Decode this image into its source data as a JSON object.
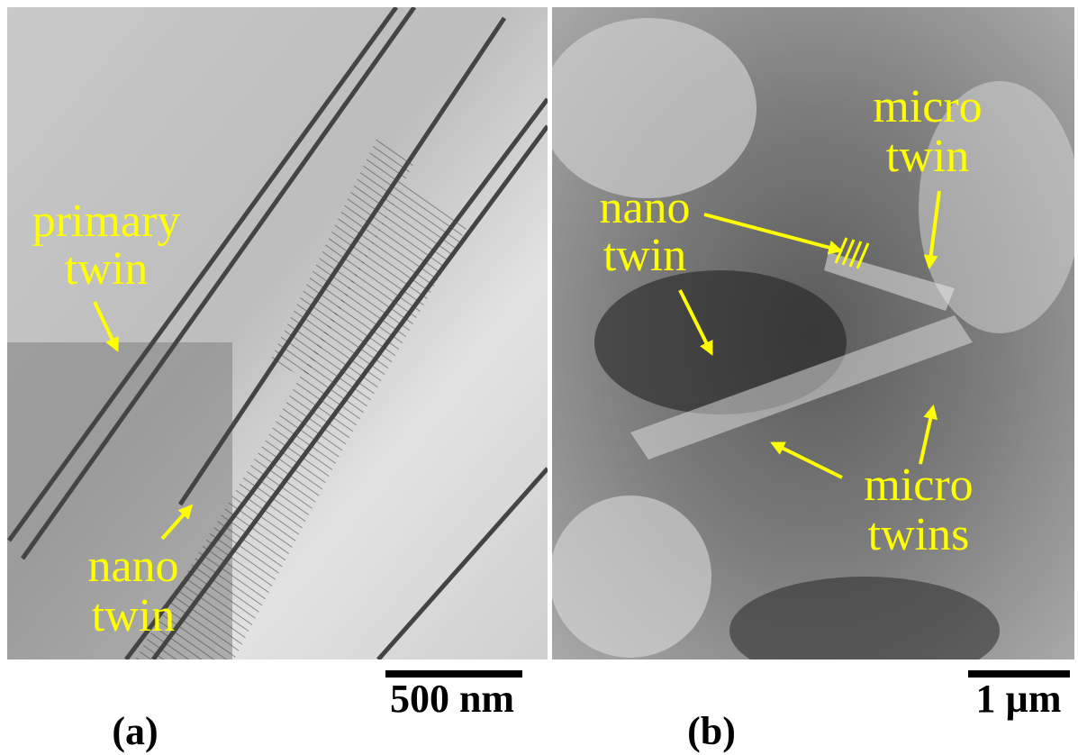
{
  "panels": [
    {
      "label": "(a)",
      "scale_bar": "500 nm",
      "annotations": [
        {
          "lines": [
            "primary",
            "twin"
          ]
        },
        {
          "lines": [
            "nano",
            "twin"
          ]
        }
      ]
    },
    {
      "label": "(b)",
      "scale_bar": "1 µm",
      "annotations": [
        {
          "lines": [
            "micro",
            "twin"
          ]
        },
        {
          "lines": [
            "nano",
            "twin"
          ]
        },
        {
          "lines": [
            "micro",
            "twins"
          ]
        }
      ]
    }
  ]
}
